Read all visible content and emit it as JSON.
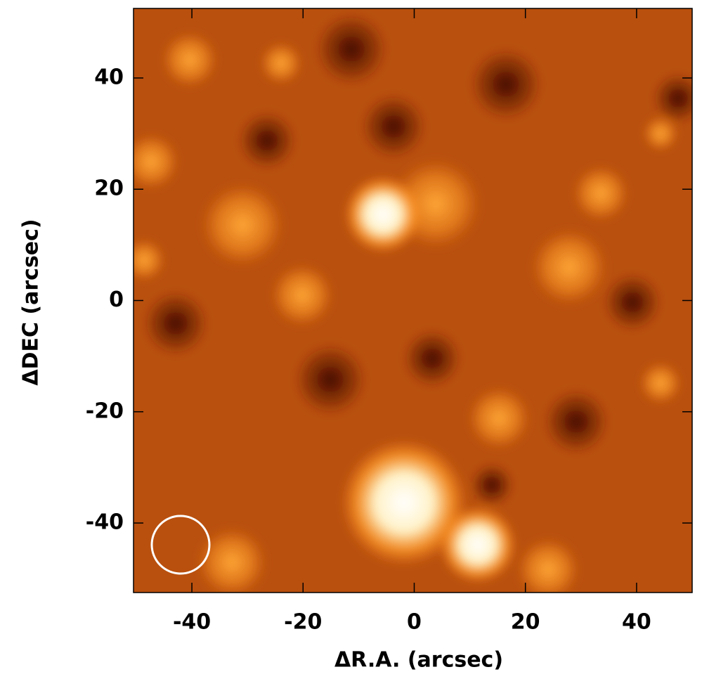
{
  "chart_data": {
    "type": "image",
    "xlabel": "ΔR.A. (arcsec)",
    "ylabel": "ΔDEC (arcsec)",
    "xlim": [
      -50.5,
      50
    ],
    "ylim": [
      -52.5,
      52.5
    ],
    "xticks": [
      -40,
      -20,
      0,
      20,
      40
    ],
    "yticks": [
      -40,
      -20,
      0,
      20,
      40
    ]
  }
}
